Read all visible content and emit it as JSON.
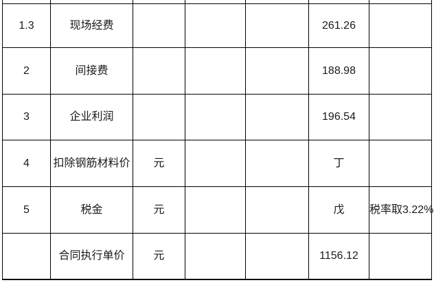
{
  "table": {
    "rows": [
      [
        "1.3",
        "现场经费",
        "",
        "",
        "",
        "261.26",
        ""
      ],
      [
        "2",
        "间接费",
        "",
        "",
        "",
        "188.98",
        ""
      ],
      [
        "3",
        "企业利润",
        "",
        "",
        "",
        "196.54",
        ""
      ],
      [
        "4",
        "扣除钢筋材料价",
        "元",
        "",
        "",
        "丁",
        ""
      ],
      [
        "5",
        "税金",
        "元",
        "",
        "",
        "戊",
        "税率取3.22%"
      ],
      [
        "",
        "合同执行单价",
        "元",
        "",
        "",
        "1156.12",
        ""
      ]
    ]
  },
  "colors": {
    "grid_line": "#000000",
    "text": "#1a1a1a",
    "background": "#ffffff"
  }
}
